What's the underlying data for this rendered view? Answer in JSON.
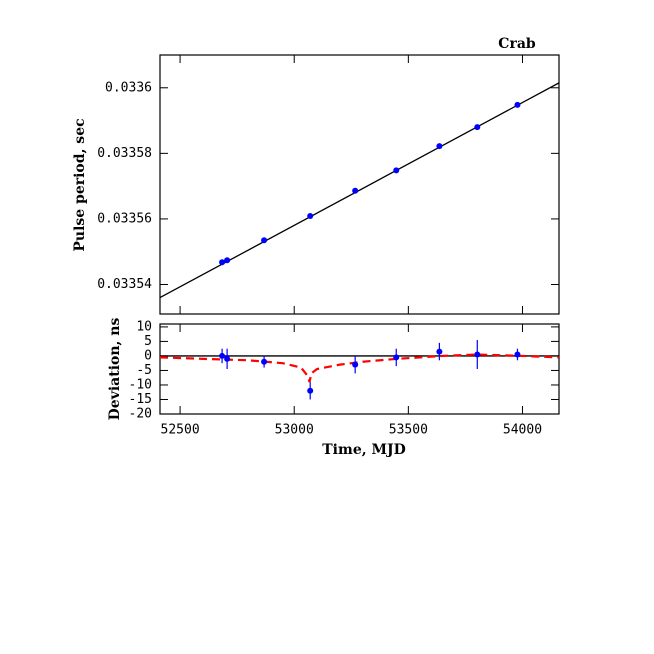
{
  "chart_data": [
    {
      "type": "scatter",
      "title": "Crab",
      "y_label": "Pulse period, sec",
      "x": [
        52684,
        52706,
        52868,
        53070,
        53267,
        53447,
        53636,
        53802,
        53978
      ],
      "values": [
        0.0335468,
        0.0335474,
        0.0335535,
        0.0335609,
        0.0335686,
        0.0335748,
        0.0335822,
        0.033588,
        0.0335948
      ],
      "color": "#0000ff",
      "fit": {
        "x": [
          52412,
          54160
        ],
        "values": [
          0.033536,
          0.0336015
        ],
        "color": "#000000"
      },
      "xlim": [
        52412,
        54160
      ],
      "xticks": [
        52500,
        53000,
        53500,
        54000
      ],
      "ylim": [
        0.033531,
        0.03361
      ],
      "yticks": [
        0.03354,
        0.03356,
        0.03358,
        0.0336
      ]
    },
    {
      "type": "scatter",
      "x_label": "Time, MJD",
      "y_label": "Deviation, ns",
      "x": [
        52684,
        52706,
        52868,
        53070,
        53267,
        53447,
        53636,
        53802,
        53978
      ],
      "values": [
        0,
        -1,
        -2,
        -12,
        -3,
        -0.5,
        1.5,
        0.5,
        0.5
      ],
      "errors": [
        2.5,
        3.5,
        2,
        3,
        3,
        3,
        3,
        5,
        2
      ],
      "color": "#0000ff",
      "reference_line": {
        "value": 0,
        "color": "#000000"
      },
      "model": {
        "x": [
          52412,
          52600,
          52800,
          52950,
          53030,
          53060,
          53067,
          53075,
          53100,
          53200,
          53300,
          53450,
          53650,
          53800,
          54000,
          54160
        ],
        "values": [
          -0.5,
          -1,
          -1.5,
          -2.5,
          -4,
          -7,
          -9,
          -6,
          -4.5,
          -3,
          -2,
          -1,
          0,
          0.5,
          0,
          -0.5
        ],
        "color": "#ff0000"
      },
      "xlim": [
        52412,
        54160
      ],
      "xticks": [
        52500,
        53000,
        53500,
        54000
      ],
      "ylim": [
        -20,
        11
      ],
      "yticks": [
        10,
        5,
        0,
        -5,
        -10,
        -15,
        -20
      ]
    }
  ]
}
